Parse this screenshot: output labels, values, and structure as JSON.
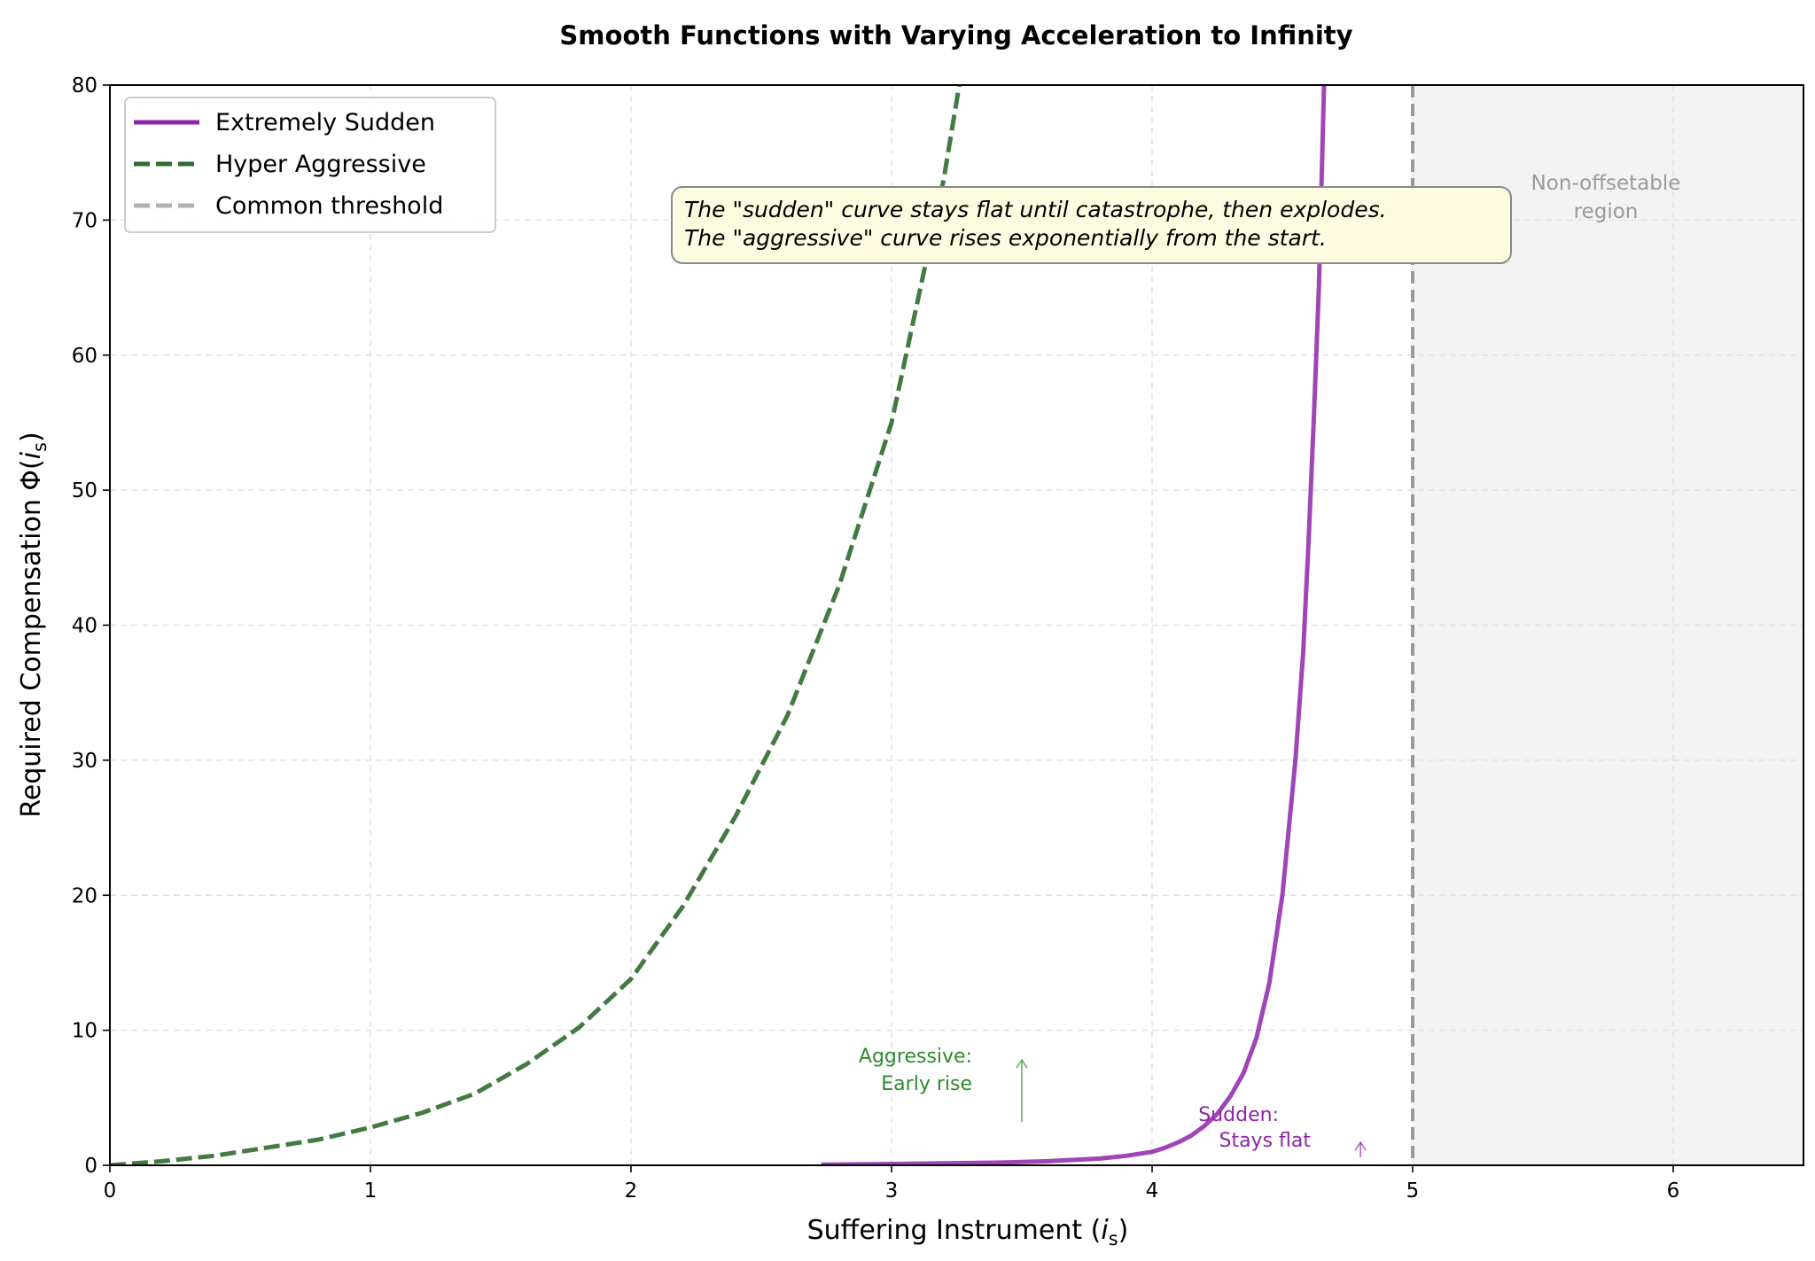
{
  "chart_data": {
    "type": "line",
    "title": "Smooth Functions with Varying Acceleration to Infinity",
    "xlabel": "Suffering Instrument (",
    "xlabel_symbol": "i",
    "xlabel_sub": "s",
    "xlabel_close": ")",
    "ylabel": "Required Compensation Φ(",
    "ylabel_symbol": "i",
    "ylabel_sub": "s",
    "ylabel_close": ")",
    "xlim": [
      0,
      6.5
    ],
    "ylim": [
      0,
      80
    ],
    "xticks": [
      0,
      1,
      2,
      3,
      4,
      5,
      6
    ],
    "xtick_labels": [
      "0",
      "1",
      "2",
      "3",
      "4",
      "5",
      "6"
    ],
    "yticks": [
      0,
      10,
      20,
      30,
      40,
      50,
      60,
      70,
      80
    ],
    "ytick_labels": [
      "0",
      "10",
      "20",
      "30",
      "40",
      "50",
      "60",
      "70",
      "80"
    ],
    "grid": true,
    "legend_position": "top-left",
    "series": [
      {
        "name": "Extremely Sudden",
        "color": "#8e24aa",
        "style": "solid",
        "x": [
          2.73,
          3.0,
          3.2,
          3.4,
          3.6,
          3.7,
          3.8,
          3.9,
          4.0,
          4.05,
          4.1,
          4.15,
          4.2,
          4.25,
          4.3,
          4.35,
          4.4,
          4.45,
          4.5,
          4.55,
          4.58,
          4.6,
          4.62,
          4.64,
          4.66
        ],
        "y": [
          0.05,
          0.1,
          0.15,
          0.2,
          0.3,
          0.4,
          0.5,
          0.7,
          1.0,
          1.3,
          1.7,
          2.2,
          2.9,
          3.8,
          5.1,
          6.8,
          9.4,
          13.5,
          20.0,
          30.0,
          38.0,
          46.0,
          55.0,
          65.0,
          80.0
        ]
      },
      {
        "name": "Hyper Aggressive",
        "color": "#2e6b2e",
        "style": "dashed",
        "x": [
          0,
          0.2,
          0.4,
          0.6,
          0.8,
          1.0,
          1.2,
          1.4,
          1.6,
          1.8,
          2.0,
          2.2,
          2.4,
          2.6,
          2.8,
          3.0,
          3.1,
          3.2,
          3.26
        ],
        "y": [
          0,
          0.3,
          0.7,
          1.3,
          1.9,
          2.8,
          3.9,
          5.3,
          7.5,
          10.2,
          13.8,
          19.2,
          25.8,
          33.3,
          43.0,
          55.0,
          64.0,
          73.0,
          80.0
        ]
      }
    ],
    "threshold": {
      "name": "Common threshold",
      "x": 5.0,
      "color": "#999999",
      "style": "dashed"
    },
    "shaded_region": {
      "x_start": 5.0,
      "x_end": 6.5,
      "label_line1": "Non-offsetable",
      "label_line2": "region"
    },
    "annotation_box": {
      "line1": "The \"sudden\" curve stays flat until catastrophe, then explodes.",
      "line2": "The \"aggressive\" curve rises exponentially from the start."
    },
    "annotations": [
      {
        "line1": "Aggressive:",
        "line2": "Early rise",
        "color": "#2e8b2e",
        "arrow_x": 3.5,
        "arrow_y_from": 3.2,
        "arrow_y_to": 7.8
      },
      {
        "line1": "Sudden:",
        "line2": "Stays flat",
        "color": "#8e24aa",
        "arrow_x": 4.8,
        "arrow_y_from": 0.6,
        "arrow_y_to": 1.7
      }
    ]
  }
}
